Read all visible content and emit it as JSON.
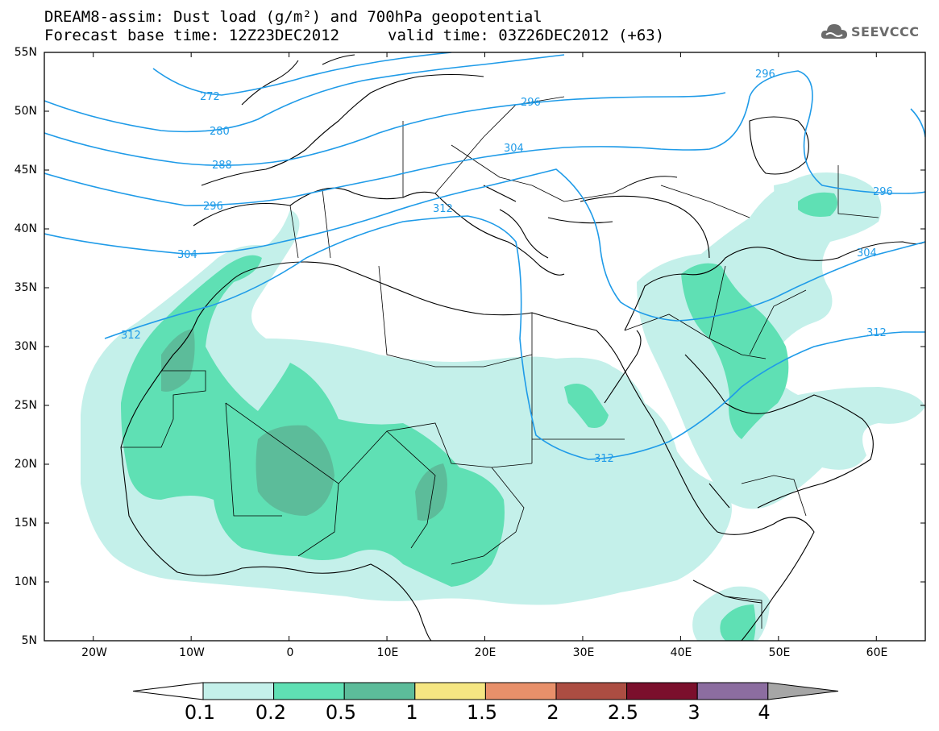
{
  "title": {
    "line1": "DREAM8-assim: Dust load (g/m²) and 700hPa geopotential",
    "line2_left": "Forecast base time: 12Z23DEC2012",
    "line2_right": "valid time: 03Z26DEC2012 (+63)"
  },
  "logo": {
    "text": "SEEVCCC",
    "icon": "cloud-icon"
  },
  "axes": {
    "lat_labels": [
      "55N",
      "50N",
      "45N",
      "40N",
      "35N",
      "30N",
      "25N",
      "20N",
      "15N",
      "10N",
      "5N"
    ],
    "lon_labels": [
      "20W",
      "10W",
      "0",
      "10E",
      "20E",
      "30E",
      "40E",
      "50E",
      "60E"
    ]
  },
  "contours": {
    "color": "#1f9be8",
    "labels": [
      "272",
      "280",
      "288",
      "296",
      "304",
      "312",
      "304",
      "312",
      "296",
      "304",
      "312",
      "296"
    ]
  },
  "colorbar": {
    "ticks": [
      "0.1",
      "0.2",
      "0.5",
      "1",
      "1.5",
      "2",
      "2.5",
      "3",
      "4"
    ],
    "colors": [
      "#c4f0ea",
      "#5fe0b4",
      "#5cbc9a",
      "#f5e682",
      "#e8906a",
      "#ac4d42",
      "#7b0f2c",
      "#8c6da0"
    ],
    "under_color": "#ffffff",
    "over_color": "#a6a6a6"
  },
  "legend_units": "g/m²"
}
